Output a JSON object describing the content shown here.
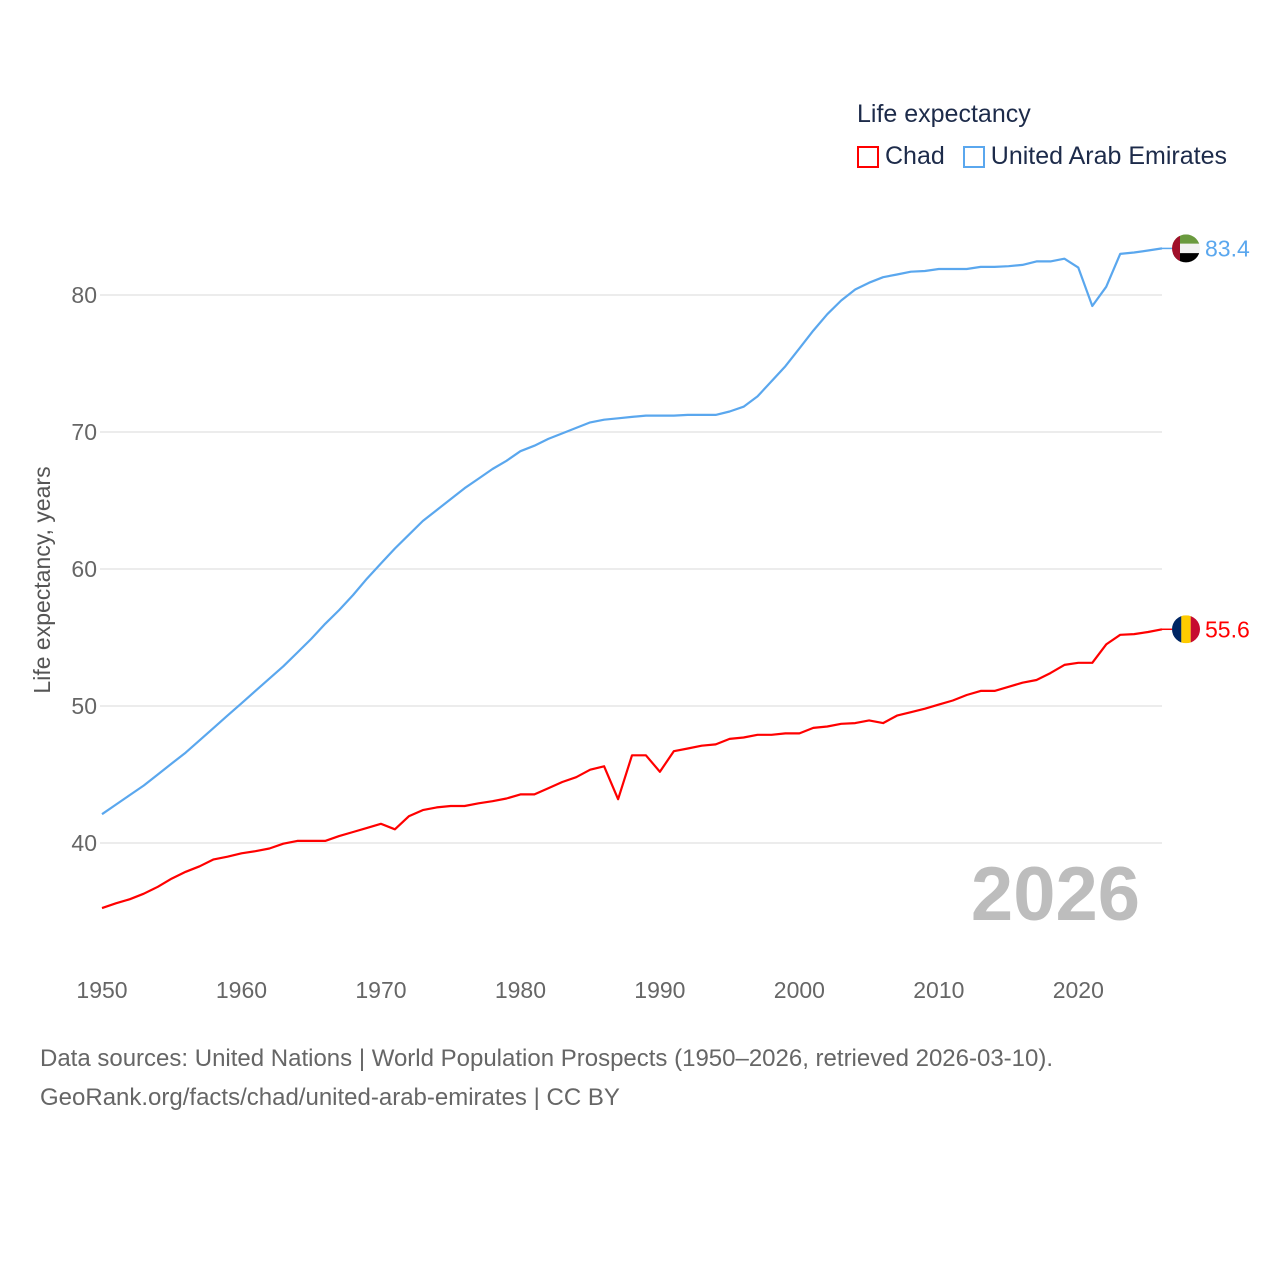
{
  "legend": {
    "title": "Life expectancy",
    "items": [
      {
        "label": "Chad",
        "color": "#ff0000"
      },
      {
        "label": "United Arab Emirates",
        "color": "#5aa7ee"
      }
    ]
  },
  "footer": {
    "line1": "Data sources: United Nations | World Population Prospects (1950–2026, retrieved 2026-03-10).",
    "line2": "GeoRank.org/facts/chad/united-arab-emirates | CC BY"
  },
  "chart_data": {
    "type": "line",
    "title": "Life expectancy",
    "xlabel": "",
    "ylabel": "Life expectancy, years",
    "year_watermark": "2026",
    "xlim": [
      1950,
      2026
    ],
    "ylim": [
      33,
      86
    ],
    "x_ticks": [
      1950,
      1960,
      1970,
      1980,
      1990,
      2000,
      2010,
      2020
    ],
    "x_tick_labels": [
      "1950",
      "1960",
      "1970",
      "1980",
      "1990",
      "2000",
      "2010",
      "2020"
    ],
    "y_ticks": [
      40,
      50,
      60,
      70,
      80
    ],
    "y_tick_labels": [
      "40",
      "50",
      "60",
      "70",
      "80"
    ],
    "grid": true,
    "legend_position": "top-right",
    "x": [
      1950,
      1951,
      1952,
      1953,
      1954,
      1955,
      1956,
      1957,
      1958,
      1959,
      1960,
      1961,
      1962,
      1963,
      1964,
      1965,
      1966,
      1967,
      1968,
      1969,
      1970,
      1971,
      1972,
      1973,
      1974,
      1975,
      1976,
      1977,
      1978,
      1979,
      1980,
      1981,
      1982,
      1983,
      1984,
      1985,
      1986,
      1987,
      1988,
      1989,
      1990,
      1991,
      1992,
      1993,
      1994,
      1995,
      1996,
      1997,
      1998,
      1999,
      2000,
      2001,
      2002,
      2003,
      2004,
      2005,
      2006,
      2007,
      2008,
      2009,
      2010,
      2011,
      2012,
      2013,
      2014,
      2015,
      2016,
      2017,
      2018,
      2019,
      2020,
      2021,
      2022,
      2023,
      2024,
      2025,
      2026
    ],
    "series": [
      {
        "name": "Chad",
        "color": "#ff0000",
        "end_label": "55.6",
        "flag": "chad-flag",
        "values": [
          35.25,
          35.6,
          35.9,
          36.3,
          36.8,
          37.4,
          37.9,
          38.3,
          38.8,
          39.0,
          39.25,
          39.4,
          39.6,
          39.95,
          40.15,
          40.15,
          40.15,
          40.5,
          40.8,
          41.1,
          41.4,
          41.0,
          41.95,
          42.4,
          42.6,
          42.7,
          42.7,
          42.9,
          43.05,
          43.25,
          43.55,
          43.55,
          44.0,
          44.45,
          44.8,
          45.35,
          45.6,
          43.2,
          46.4,
          46.4,
          45.2,
          46.7,
          46.9,
          47.1,
          47.2,
          47.6,
          47.7,
          47.9,
          47.9,
          48.0,
          48.0,
          48.4,
          48.5,
          48.7,
          48.75,
          48.95,
          48.75,
          49.3,
          49.55,
          49.8,
          50.1,
          50.4,
          50.8,
          51.1,
          51.1,
          51.4,
          51.7,
          51.9,
          52.4,
          53.0,
          53.15,
          53.15,
          54.5,
          55.2,
          55.25,
          55.4,
          55.6
        ]
      },
      {
        "name": "United Arab Emirates",
        "color": "#5aa7ee",
        "end_label": "83.4",
        "flag": "uae-flag",
        "values": [
          42.1,
          42.8,
          43.5,
          44.2,
          45.0,
          45.8,
          46.6,
          47.5,
          48.4,
          49.3,
          50.2,
          51.1,
          52.0,
          52.9,
          53.9,
          54.9,
          56.0,
          57.0,
          58.1,
          59.3,
          60.4,
          61.5,
          62.5,
          63.5,
          64.3,
          65.1,
          65.9,
          66.6,
          67.3,
          67.9,
          68.6,
          69.0,
          69.5,
          69.9,
          70.3,
          70.7,
          70.9,
          71.0,
          71.1,
          71.2,
          71.2,
          71.2,
          71.25,
          71.25,
          71.25,
          71.5,
          71.85,
          72.6,
          73.7,
          74.8,
          76.1,
          77.4,
          78.6,
          79.6,
          80.4,
          80.9,
          81.3,
          81.5,
          81.7,
          81.75,
          81.9,
          81.9,
          81.9,
          82.05,
          82.05,
          82.1,
          82.2,
          82.45,
          82.45,
          82.65,
          82.0,
          79.2,
          80.6,
          83.0,
          83.1,
          83.25,
          83.4
        ]
      }
    ]
  }
}
